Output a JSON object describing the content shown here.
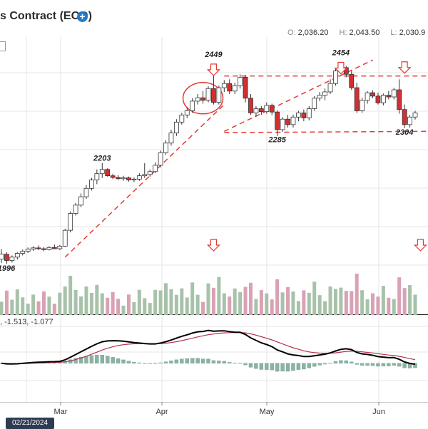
{
  "title": "s Contract (EOD)",
  "add_icon": "plus-circle-icon",
  "ohlc": [
    {
      "key": "O:",
      "value": "2,036.20"
    },
    {
      "key": "H:",
      "value": "2,043.50"
    },
    {
      "key": "L:",
      "value": "2,030.9"
    }
  ],
  "macd_readout": ", -1.513, -1.077",
  "date_badge": "02/21/2024",
  "colors": {
    "up": "#ffffff",
    "down": "#d32f2f",
    "signal": "#b5314a",
    "macd": "#000000",
    "hist": "#8ab3a4",
    "volume_up": "#a8c2aa",
    "volume_down": "#d9a2b4",
    "annotation": "#e53935"
  },
  "chart_data": {
    "type": "candlestick",
    "x_ticks": [
      "Mar",
      "Apr",
      "May",
      "Jun"
    ],
    "price_annotations": [
      "1996",
      "2203",
      "2449",
      "2454",
      "2285",
      "2304"
    ],
    "candles": [
      [
        1991,
        2015,
        1982,
        2003
      ],
      [
        2003,
        2008,
        1980,
        1988
      ],
      [
        1988,
        2000,
        1983,
        1996
      ],
      [
        1996,
        2008,
        1990,
        2005
      ],
      [
        2005,
        2014,
        2000,
        2010
      ],
      [
        2010,
        2019,
        2006,
        2015
      ],
      [
        2015,
        2022,
        2011,
        2018
      ],
      [
        2018,
        2024,
        2013,
        2016
      ],
      [
        2016,
        2020,
        2010,
        2014
      ],
      [
        2014,
        2022,
        2012,
        2019
      ],
      [
        2019,
        2026,
        2015,
        2016
      ],
      [
        2016,
        2025,
        2013,
        2022
      ],
      [
        2022,
        2064,
        2020,
        2060
      ],
      [
        2060,
        2105,
        2055,
        2100
      ],
      [
        2100,
        2125,
        2095,
        2120
      ],
      [
        2120,
        2148,
        2115,
        2140
      ],
      [
        2140,
        2168,
        2135,
        2160
      ],
      [
        2160,
        2185,
        2155,
        2180
      ],
      [
        2180,
        2205,
        2170,
        2195
      ],
      [
        2195,
        2220,
        2185,
        2205
      ],
      [
        2205,
        2208,
        2188,
        2190
      ],
      [
        2190,
        2195,
        2182,
        2186
      ],
      [
        2186,
        2192,
        2180,
        2183
      ],
      [
        2183,
        2190,
        2178,
        2185
      ],
      [
        2185,
        2188,
        2176,
        2180
      ],
      [
        2180,
        2186,
        2175,
        2182
      ],
      [
        2182,
        2196,
        2178,
        2190
      ],
      [
        2190,
        2220,
        2185,
        2193
      ],
      [
        2193,
        2205,
        2188,
        2200
      ],
      [
        2200,
        2222,
        2196,
        2215
      ],
      [
        2215,
        2250,
        2210,
        2245
      ],
      [
        2245,
        2275,
        2240,
        2268
      ],
      [
        2268,
        2300,
        2262,
        2292
      ],
      [
        2292,
        2325,
        2285,
        2318
      ],
      [
        2318,
        2340,
        2312,
        2335
      ],
      [
        2335,
        2352,
        2328,
        2345
      ],
      [
        2345,
        2375,
        2340,
        2368
      ],
      [
        2368,
        2385,
        2360,
        2376
      ],
      [
        2376,
        2392,
        2362,
        2370
      ],
      [
        2370,
        2403,
        2365,
        2398
      ],
      [
        2398,
        2449,
        2360,
        2365
      ],
      [
        2365,
        2405,
        2360,
        2400
      ],
      [
        2400,
        2418,
        2390,
        2410
      ],
      [
        2410,
        2420,
        2385,
        2392
      ],
      [
        2392,
        2412,
        2385,
        2405
      ],
      [
        2405,
        2432,
        2398,
        2425
      ],
      [
        2425,
        2430,
        2365,
        2375
      ],
      [
        2375,
        2385,
        2335,
        2340
      ],
      [
        2340,
        2356,
        2330,
        2350
      ],
      [
        2350,
        2356,
        2335,
        2343
      ],
      [
        2343,
        2365,
        2338,
        2358
      ],
      [
        2358,
        2362,
        2335,
        2342
      ],
      [
        2342,
        2346,
        2285,
        2300
      ],
      [
        2300,
        2330,
        2295,
        2325
      ],
      [
        2325,
        2335,
        2305,
        2312
      ],
      [
        2312,
        2336,
        2305,
        2330
      ],
      [
        2330,
        2345,
        2320,
        2340
      ],
      [
        2340,
        2348,
        2320,
        2328
      ],
      [
        2328,
        2356,
        2322,
        2350
      ],
      [
        2350,
        2380,
        2345,
        2375
      ],
      [
        2375,
        2390,
        2368,
        2382
      ],
      [
        2382,
        2398,
        2370,
        2390
      ],
      [
        2390,
        2420,
        2385,
        2410
      ],
      [
        2410,
        2445,
        2405,
        2440
      ],
      [
        2440,
        2454,
        2432,
        2448
      ],
      [
        2448,
        2452,
        2425,
        2432
      ],
      [
        2432,
        2440,
        2395,
        2400
      ],
      [
        2400,
        2412,
        2340,
        2345
      ],
      [
        2345,
        2376,
        2340,
        2370
      ],
      [
        2370,
        2392,
        2362,
        2388
      ],
      [
        2388,
        2394,
        2375,
        2380
      ],
      [
        2380,
        2388,
        2360,
        2364
      ],
      [
        2364,
        2386,
        2358,
        2382
      ],
      [
        2382,
        2392,
        2372,
        2378
      ],
      [
        2378,
        2400,
        2372,
        2395
      ],
      [
        2395,
        2420,
        2338,
        2348
      ],
      [
        2348,
        2360,
        2304,
        2312
      ],
      [
        2312,
        2335,
        2305,
        2330
      ],
      [
        2330,
        2345,
        2324,
        2340
      ]
    ],
    "volume_markers": [
      40,
      79,
      95
    ],
    "macd_range": [
      -1.2,
      1.4
    ]
  }
}
